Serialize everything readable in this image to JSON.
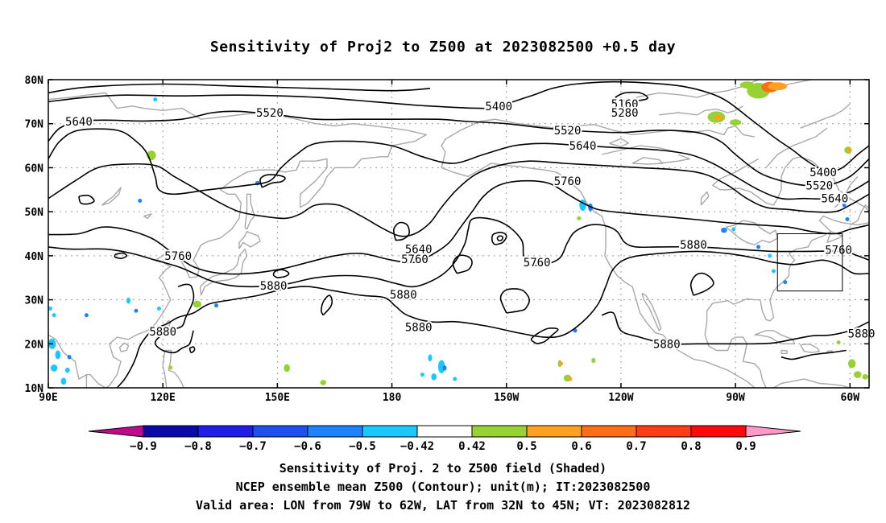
{
  "title": "Sensitivity of Proj2 to Z500 at 2023082500 +0.5 day",
  "captions": [
    "Sensitivity of Proj. 2 to Z500 field (Shaded)",
    "NCEP ensemble mean Z500 (Contour); unit(m); IT:2023082500",
    "Valid area: LON from 79W to 62W, LAT from 32N to 45N; VT: 2023082812"
  ],
  "map": {
    "lon_range": [
      90,
      305
    ],
    "lat_range": [
      10,
      80
    ],
    "lat_ticks": [
      {
        "value": 80,
        "label": "80N"
      },
      {
        "value": 70,
        "label": "70N"
      },
      {
        "value": 60,
        "label": "60N"
      },
      {
        "value": 50,
        "label": "50N"
      },
      {
        "value": 40,
        "label": "40N"
      },
      {
        "value": 30,
        "label": "30N"
      },
      {
        "value": 20,
        "label": "20N"
      },
      {
        "value": 10,
        "label": "10N"
      }
    ],
    "lon_ticks": [
      {
        "value": 90,
        "label": "90E"
      },
      {
        "value": 120,
        "label": "120E"
      },
      {
        "value": 150,
        "label": "150E"
      },
      {
        "value": 180,
        "label": "180"
      },
      {
        "value": 210,
        "label": "150W"
      },
      {
        "value": 240,
        "label": "120W"
      },
      {
        "value": 270,
        "label": "90W"
      },
      {
        "value": 300,
        "label": "60W"
      }
    ],
    "valid_area": {
      "lon_west": 281,
      "lon_east": 298,
      "lat_south": 32,
      "lat_north": 45
    },
    "contour_color": "#000000",
    "coast_color": "#a8a8a8",
    "grid_color": "#9a9a9a"
  },
  "contour_labels": [
    {
      "text": "5640",
      "lon": 98,
      "lat": 70.5
    },
    {
      "text": "5520",
      "lon": 148,
      "lat": 72.5
    },
    {
      "text": "5400",
      "lon": 208,
      "lat": 74
    },
    {
      "text": "5160",
      "lon": 241,
      "lat": 74.5
    },
    {
      "text": "5280",
      "lon": 241,
      "lat": 72.5
    },
    {
      "text": "5520",
      "lon": 226,
      "lat": 68.5
    },
    {
      "text": "5640",
      "lon": 230,
      "lat": 65
    },
    {
      "text": "5760",
      "lon": 226,
      "lat": 57
    },
    {
      "text": "5400",
      "lon": 293,
      "lat": 59
    },
    {
      "text": "5520",
      "lon": 292,
      "lat": 56
    },
    {
      "text": "5640",
      "lon": 296,
      "lat": 53
    },
    {
      "text": "5880",
      "lon": 259,
      "lat": 42.5
    },
    {
      "text": "5760",
      "lon": 297,
      "lat": 41.3
    },
    {
      "text": "5640",
      "lon": 187,
      "lat": 41.5
    },
    {
      "text": "5760",
      "lon": 186,
      "lat": 39.2
    },
    {
      "text": "5760",
      "lon": 124,
      "lat": 40
    },
    {
      "text": "5760",
      "lon": 218,
      "lat": 38.5
    },
    {
      "text": "5880",
      "lon": 149,
      "lat": 33.2
    },
    {
      "text": "5880",
      "lon": 183,
      "lat": 31.2
    },
    {
      "text": "5880",
      "lon": 187,
      "lat": 23.8
    },
    {
      "text": "5880",
      "lon": 120,
      "lat": 22.8
    },
    {
      "text": "5880",
      "lon": 252,
      "lat": 20
    },
    {
      "text": "5880",
      "lon": 303,
      "lat": 22.3
    }
  ],
  "colorbar": {
    "labels": [
      "−0.9",
      "−0.8",
      "−0.7",
      "−0.6",
      "−0.5",
      "−0.42",
      "0.42",
      "0.5",
      "0.6",
      "0.7",
      "0.8",
      "0.9"
    ],
    "colors": [
      "#bf0a8c",
      "#0a0aa8",
      "#1e1ee6",
      "#1e50f0",
      "#1e82ff",
      "#19c8ff",
      "#ffffff",
      "#96d232",
      "#ffa01e",
      "#ff6e14",
      "#ff3c14",
      "#ff0a0a",
      "#ff99c8"
    ]
  }
}
